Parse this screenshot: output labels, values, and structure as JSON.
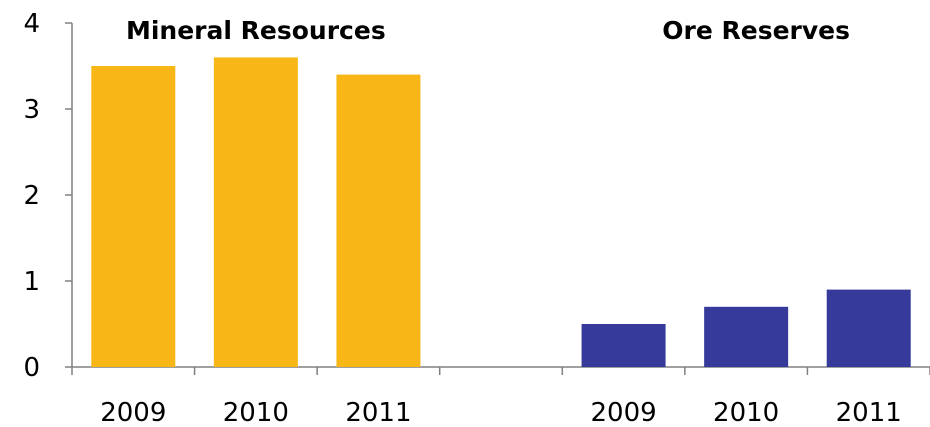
{
  "chart_data": {
    "type": "bar",
    "ylim": [
      0,
      4
    ],
    "yticks": [
      0,
      1,
      2,
      3,
      4
    ],
    "grid": false,
    "groups": [
      {
        "name": "Mineral Resources",
        "color": "#F9B717",
        "categories": [
          "2009",
          "2010",
          "2011"
        ],
        "values": [
          3.5,
          3.6,
          3.4
        ]
      },
      {
        "name": "Ore Reserves",
        "color": "#353A9B",
        "categories": [
          "2009",
          "2010",
          "2011"
        ],
        "values": [
          0.5,
          0.7,
          0.9
        ]
      }
    ]
  }
}
